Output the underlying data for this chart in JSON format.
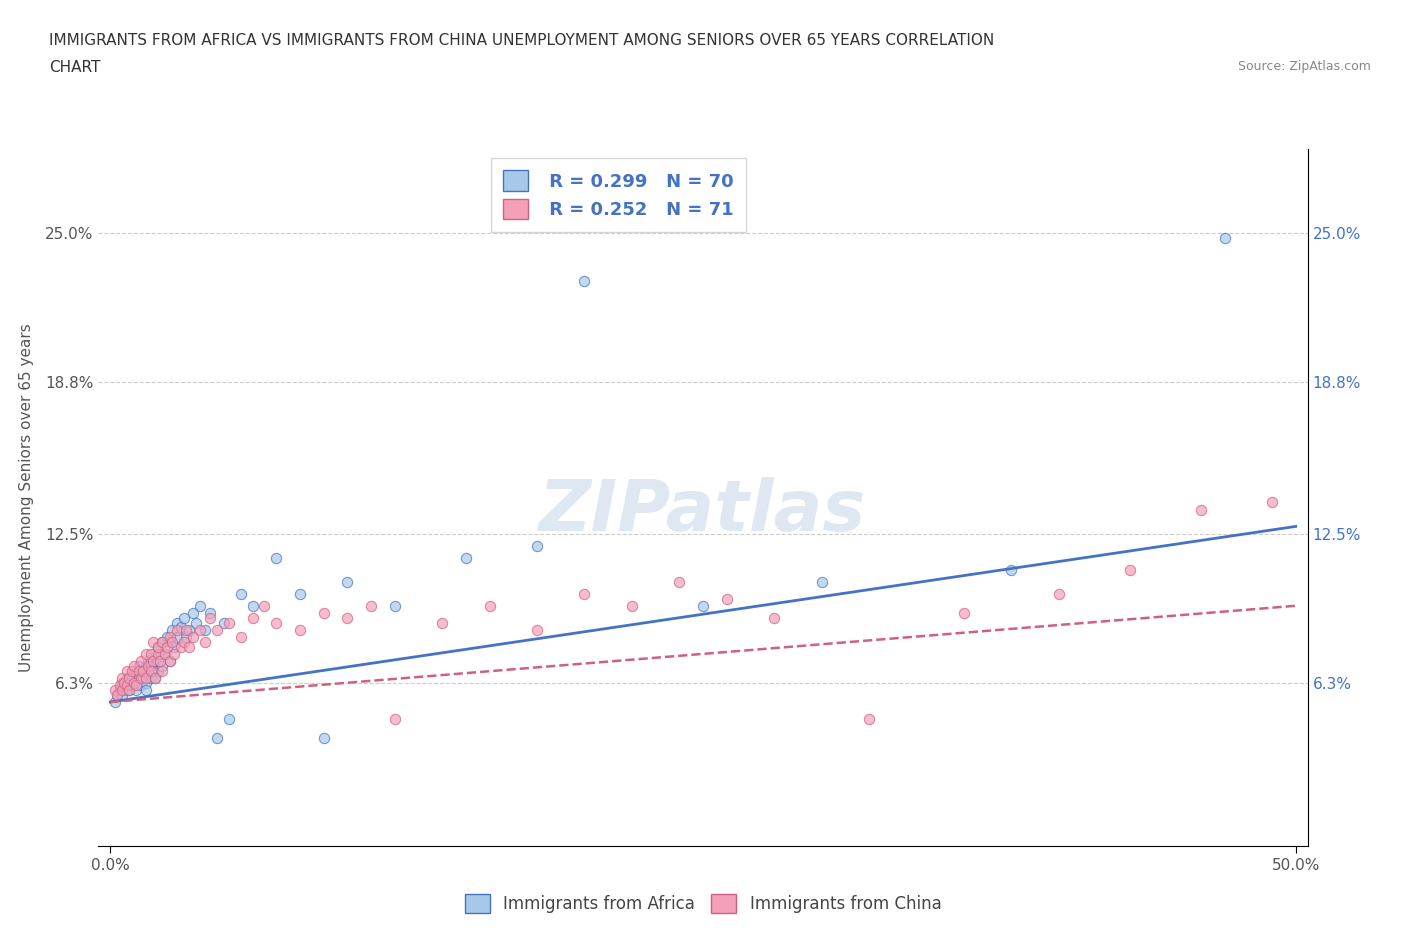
{
  "title_line1": "IMMIGRANTS FROM AFRICA VS IMMIGRANTS FROM CHINA UNEMPLOYMENT AMONG SENIORS OVER 65 YEARS CORRELATION",
  "title_line2": "CHART",
  "source_text": "Source: ZipAtlas.com",
  "ylabel": "Unemployment Among Seniors over 65 years",
  "xlim": [
    -0.005,
    0.505
  ],
  "ylim": [
    -0.005,
    0.285
  ],
  "yticks": [
    0.0,
    0.063,
    0.125,
    0.188,
    0.25
  ],
  "ytick_labels": [
    "",
    "6.3%",
    "12.5%",
    "18.8%",
    "25.0%"
  ],
  "xticks": [
    0.0,
    0.5
  ],
  "xtick_labels": [
    "0.0%",
    "50.0%"
  ],
  "watermark": "ZIPatlas",
  "legend_r1": "R = 0.299",
  "legend_n1": "N = 70",
  "legend_r2": "R = 0.252",
  "legend_n2": "N = 71",
  "color_africa": "#a8c8e8",
  "color_china": "#f4a0b8",
  "line_color_africa": "#4472c4",
  "line_color_china": "#d06080",
  "background_color": "#ffffff",
  "africa_x": [
    0.002,
    0.003,
    0.004,
    0.005,
    0.005,
    0.006,
    0.007,
    0.007,
    0.008,
    0.008,
    0.009,
    0.009,
    0.01,
    0.01,
    0.011,
    0.012,
    0.012,
    0.013,
    0.013,
    0.014,
    0.015,
    0.015,
    0.015,
    0.016,
    0.016,
    0.017,
    0.017,
    0.018,
    0.018,
    0.019,
    0.02,
    0.02,
    0.02,
    0.021,
    0.022,
    0.022,
    0.023,
    0.024,
    0.025,
    0.025,
    0.026,
    0.027,
    0.028,
    0.028,
    0.03,
    0.031,
    0.032,
    0.033,
    0.035,
    0.036,
    0.038,
    0.04,
    0.042,
    0.045,
    0.048,
    0.05,
    0.055,
    0.06,
    0.07,
    0.08,
    0.09,
    0.1,
    0.12,
    0.15,
    0.18,
    0.2,
    0.25,
    0.3,
    0.38,
    0.47
  ],
  "africa_y": [
    0.055,
    0.058,
    0.06,
    0.063,
    0.058,
    0.062,
    0.06,
    0.065,
    0.063,
    0.06,
    0.065,
    0.062,
    0.068,
    0.063,
    0.06,
    0.065,
    0.07,
    0.062,
    0.068,
    0.065,
    0.063,
    0.07,
    0.06,
    0.068,
    0.072,
    0.065,
    0.07,
    0.068,
    0.075,
    0.065,
    0.072,
    0.078,
    0.068,
    0.075,
    0.08,
    0.07,
    0.075,
    0.082,
    0.08,
    0.072,
    0.085,
    0.078,
    0.082,
    0.088,
    0.086,
    0.09,
    0.082,
    0.085,
    0.092,
    0.088,
    0.095,
    0.085,
    0.092,
    0.04,
    0.088,
    0.048,
    0.1,
    0.095,
    0.115,
    0.1,
    0.04,
    0.105,
    0.095,
    0.115,
    0.12,
    0.23,
    0.095,
    0.105,
    0.11,
    0.248
  ],
  "china_x": [
    0.002,
    0.003,
    0.004,
    0.005,
    0.005,
    0.006,
    0.007,
    0.007,
    0.008,
    0.008,
    0.009,
    0.01,
    0.01,
    0.011,
    0.012,
    0.013,
    0.013,
    0.014,
    0.015,
    0.015,
    0.016,
    0.017,
    0.017,
    0.018,
    0.018,
    0.019,
    0.02,
    0.02,
    0.021,
    0.022,
    0.022,
    0.023,
    0.024,
    0.025,
    0.025,
    0.026,
    0.027,
    0.028,
    0.03,
    0.031,
    0.032,
    0.033,
    0.035,
    0.038,
    0.04,
    0.042,
    0.045,
    0.05,
    0.055,
    0.06,
    0.065,
    0.07,
    0.08,
    0.09,
    0.1,
    0.11,
    0.12,
    0.14,
    0.16,
    0.18,
    0.2,
    0.22,
    0.24,
    0.26,
    0.28,
    0.32,
    0.36,
    0.4,
    0.43,
    0.46,
    0.49
  ],
  "china_y": [
    0.06,
    0.058,
    0.062,
    0.065,
    0.06,
    0.063,
    0.068,
    0.062,
    0.065,
    0.06,
    0.068,
    0.063,
    0.07,
    0.062,
    0.068,
    0.065,
    0.072,
    0.068,
    0.065,
    0.075,
    0.07,
    0.068,
    0.075,
    0.072,
    0.08,
    0.065,
    0.075,
    0.078,
    0.072,
    0.068,
    0.08,
    0.075,
    0.078,
    0.082,
    0.072,
    0.08,
    0.075,
    0.085,
    0.078,
    0.08,
    0.085,
    0.078,
    0.082,
    0.085,
    0.08,
    0.09,
    0.085,
    0.088,
    0.082,
    0.09,
    0.095,
    0.088,
    0.085,
    0.092,
    0.09,
    0.095,
    0.048,
    0.088,
    0.095,
    0.085,
    0.1,
    0.095,
    0.105,
    0.098,
    0.09,
    0.048,
    0.092,
    0.1,
    0.11,
    0.135,
    0.138
  ],
  "africa_trendline": [
    0.055,
    0.128
  ],
  "china_trendline": [
    0.055,
    0.095
  ]
}
